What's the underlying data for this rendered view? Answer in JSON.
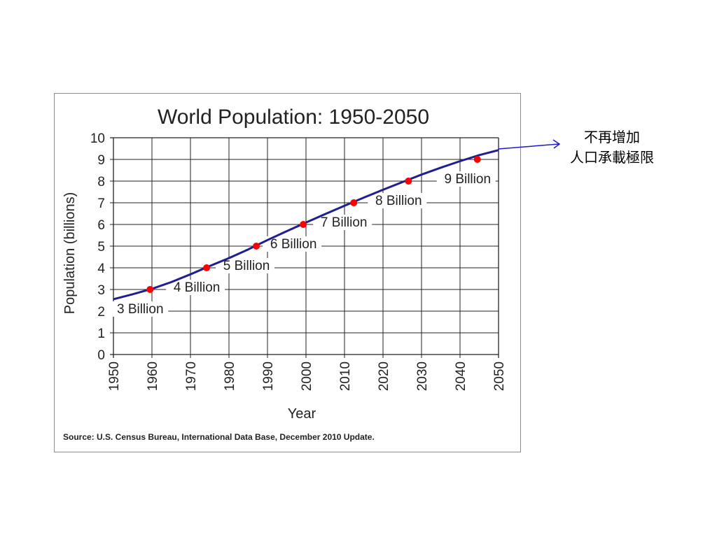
{
  "chart_data": {
    "type": "line",
    "title": "World Population: 1950-2050",
    "xlabel": "Year",
    "ylabel": "Population (billions)",
    "xlim": [
      1950,
      2050
    ],
    "ylim": [
      0,
      10
    ],
    "x_ticks": [
      1950,
      1960,
      1970,
      1980,
      1990,
      2000,
      2010,
      2020,
      2030,
      2040,
      2050
    ],
    "y_ticks": [
      0,
      1,
      2,
      3,
      4,
      5,
      6,
      7,
      8,
      9,
      10
    ],
    "grid": true,
    "series": [
      {
        "x": [
          1950,
          1955,
          1960,
          1965,
          1970,
          1975,
          1980,
          1985,
          1990,
          1995,
          2000,
          2005,
          2010,
          2015,
          2020,
          2025,
          2030,
          2035,
          2040,
          2045,
          2050
        ],
        "y": [
          2.55,
          2.78,
          3.03,
          3.34,
          3.7,
          4.08,
          4.45,
          4.85,
          5.28,
          5.69,
          6.09,
          6.48,
          6.86,
          7.24,
          7.6,
          7.95,
          8.3,
          8.62,
          8.92,
          9.2,
          9.43
        ],
        "color": "#1f1f8f"
      }
    ],
    "milestones": [
      {
        "x": 1959.5,
        "y": 3,
        "label": "3 Billion"
      },
      {
        "x": 1974.2,
        "y": 4,
        "label": "4 Billion"
      },
      {
        "x": 1987.1,
        "y": 5,
        "label": "5 Billion"
      },
      {
        "x": 1999.3,
        "y": 6,
        "label": "6 Billion"
      },
      {
        "x": 2012.4,
        "y": 7,
        "label": "7 Billion"
      },
      {
        "x": 2026.6,
        "y": 8,
        "label": "8 Billion"
      },
      {
        "x": 2044.5,
        "y": 9,
        "label": "9 Billion"
      }
    ],
    "marker_color": "#ff0000",
    "source": "Source: U.S. Census Bureau, International Data Base, December 2010 Update."
  },
  "annotation": {
    "line1": "不再增加",
    "line2": "人口承載極限",
    "arrow_color": "#1a1acc"
  }
}
